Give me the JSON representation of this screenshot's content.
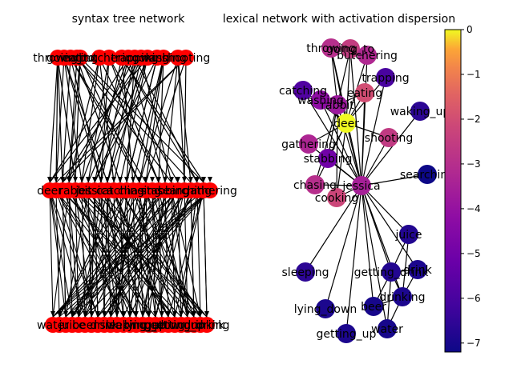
{
  "left_panel": {
    "title": "syntax tree network",
    "node_color": "#ff0000",
    "row1_labels": [
      "throwing",
      "going_to",
      "eating",
      "butchering",
      "trapping",
      "cooking",
      "washing",
      "shooting"
    ],
    "row2_labels": [
      "deer",
      "rabbit",
      "jessica",
      "catching",
      "chasing",
      "stabbing",
      "searching",
      "gathering"
    ],
    "row3_labels": [
      "water",
      "juice",
      "beer",
      "drink",
      "sleeping",
      "waking_up",
      "lying_down",
      "getting_up",
      "getting_drink",
      "drinking"
    ]
  },
  "right_panel": {
    "title": "lexical network with activation dispersion",
    "nodes": [
      {
        "label": "throwing",
        "activation": -3.0
      },
      {
        "label": "going_to",
        "activation": -2.5
      },
      {
        "label": "butchering",
        "activation": -3.2
      },
      {
        "label": "trapping",
        "activation": -6.0
      },
      {
        "label": "catching",
        "activation": -5.8
      },
      {
        "label": "washing",
        "activation": -4.2
      },
      {
        "label": "eating",
        "activation": -2.0
      },
      {
        "label": "rabbit",
        "activation": -3.8
      },
      {
        "label": "waking_up",
        "activation": -6.6
      },
      {
        "label": "deer",
        "activation": 0.0
      },
      {
        "label": "shooting",
        "activation": -2.6
      },
      {
        "label": "gathering",
        "activation": -3.3
      },
      {
        "label": "stabbing",
        "activation": -5.0
      },
      {
        "label": "chasing",
        "activation": -3.0
      },
      {
        "label": "jessica",
        "activation": -3.5
      },
      {
        "label": "searching",
        "activation": -7.2
      },
      {
        "label": "cooking",
        "activation": -2.2
      },
      {
        "label": "juice",
        "activation": -6.8
      },
      {
        "label": "sleeping",
        "activation": -6.6
      },
      {
        "label": "getting_drink",
        "activation": -6.8
      },
      {
        "label": "drink",
        "activation": -6.9
      },
      {
        "label": "drinking",
        "activation": -6.9
      },
      {
        "label": "lying_down",
        "activation": -6.9
      },
      {
        "label": "beer",
        "activation": -7.0
      },
      {
        "label": "water",
        "activation": -7.0
      },
      {
        "label": "getting_up",
        "activation": -6.9
      }
    ],
    "colorbar": {
      "min": -7.2,
      "max": 0,
      "ticks": [
        "0",
        "−1",
        "−2",
        "−3",
        "−4",
        "−5",
        "−6",
        "−7"
      ],
      "tick_values": [
        0,
        -1,
        -2,
        -3,
        -4,
        -5,
        -6,
        -7
      ]
    }
  }
}
